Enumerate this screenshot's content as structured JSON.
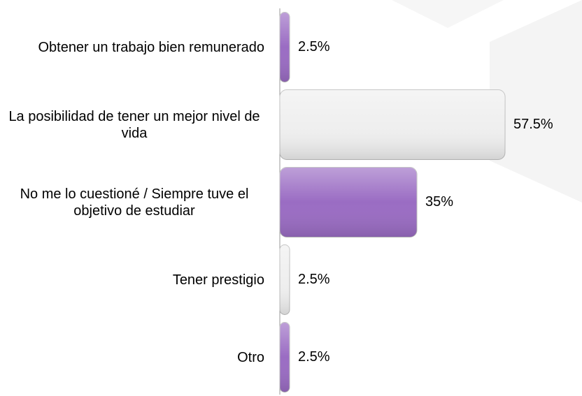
{
  "chart_data": {
    "type": "bar",
    "orientation": "horizontal",
    "categories": [
      "Obtener un trabajo bien remunerado",
      "La posibilidad de tener un mejor nivel de vida",
      "No me lo cuestioné / Siempre tuve el objetivo de estudiar",
      "Tener prestigio",
      "Otro"
    ],
    "values": [
      2.5,
      57.5,
      35,
      2.5,
      2.5
    ],
    "value_labels": [
      "2.5%",
      "57.5%",
      "35%",
      "2.5%",
      "2.5%"
    ],
    "colors": [
      "#9a6cc3",
      "#efefef",
      "#9a6cc3",
      "#efefef",
      "#9a6cc3"
    ]
  }
}
